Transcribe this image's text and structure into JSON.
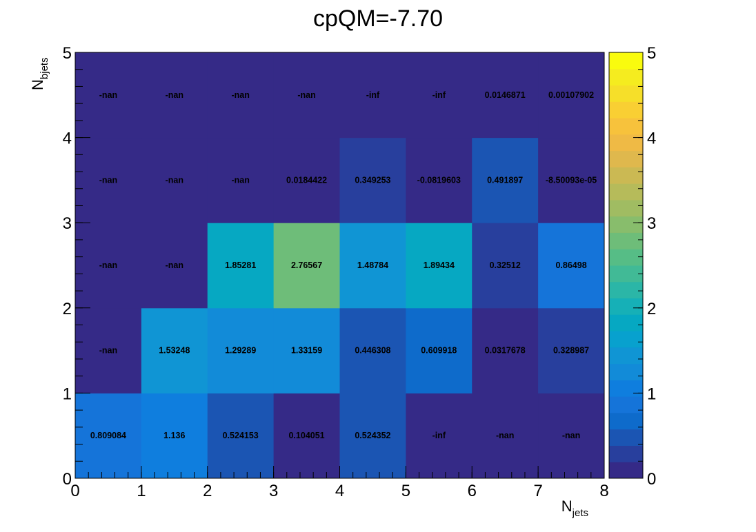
{
  "chart_data": {
    "type": "heatmap",
    "title": "cpQM=-7.70",
    "xlabel": {
      "main": "N",
      "sub": "jets"
    },
    "ylabel": {
      "main": "N",
      "sub": "bjets"
    },
    "xlim": [
      0,
      8
    ],
    "ylim": [
      0,
      5
    ],
    "x_ticks": [
      "0",
      "1",
      "2",
      "3",
      "4",
      "5",
      "6",
      "7",
      "8"
    ],
    "y_ticks": [
      "0",
      "1",
      "2",
      "3",
      "4",
      "5"
    ],
    "z_ticks": [
      "0",
      "1",
      "2",
      "3",
      "4",
      "5"
    ],
    "zlim": [
      0,
      5
    ],
    "bins": [
      {
        "y_bin": 0,
        "values": [
          0.809084,
          1.136,
          0.524153,
          0.104051,
          0.524352,
          null,
          null,
          null
        ],
        "labels": [
          "0.809084",
          "1.136",
          "0.524153",
          "0.104051",
          "0.524352",
          "-inf",
          "-nan",
          "-nan"
        ]
      },
      {
        "y_bin": 1,
        "values": [
          null,
          1.53248,
          1.29289,
          1.33159,
          0.446308,
          0.609918,
          0.0317678,
          0.328987
        ],
        "labels": [
          "-nan",
          "1.53248",
          "1.29289",
          "1.33159",
          "0.446308",
          "0.609918",
          "0.0317678",
          "0.328987"
        ]
      },
      {
        "y_bin": 2,
        "values": [
          null,
          null,
          1.85281,
          2.76567,
          1.48784,
          1.89434,
          0.32512,
          0.86498
        ],
        "labels": [
          "-nan",
          "-nan",
          "1.85281",
          "2.76567",
          "1.48784",
          "1.89434",
          "0.32512",
          "0.86498"
        ]
      },
      {
        "y_bin": 3,
        "values": [
          null,
          null,
          null,
          0.0184422,
          0.349253,
          -0.0819603,
          0.491897,
          -8.50093e-05
        ],
        "labels": [
          "-nan",
          "-nan",
          "-nan",
          "0.0184422",
          "0.349253",
          "-0.0819603",
          "0.491897",
          "-8.50093e-05"
        ]
      },
      {
        "y_bin": 4,
        "values": [
          null,
          null,
          null,
          null,
          null,
          null,
          0.0146871,
          0.00107902
        ],
        "labels": [
          "-nan",
          "-nan",
          "-nan",
          "-nan",
          "-inf",
          "-inf",
          "0.0146871",
          "0.00107902"
        ]
      }
    ],
    "colormap": [
      "#352a87",
      "#283f9d",
      "#1b55b3",
      "#0e6bcb",
      "#1574d9",
      "#0f7ede",
      "#128bd8",
      "#1095d4",
      "#08a1ce",
      "#06a8c2",
      "#16b0b7",
      "#2bb6a7",
      "#41ba96",
      "#56bd86",
      "#6ebd79",
      "#88bd6c",
      "#a0bc62",
      "#b6bb5a",
      "#cbb953",
      "#dfb84d",
      "#efba45",
      "#f7c23c",
      "#f9cf33",
      "#f6df29",
      "#f5ec1f",
      "#f9fb0e"
    ],
    "nan_color": "#352a87",
    "grid": false,
    "legend": "none"
  }
}
